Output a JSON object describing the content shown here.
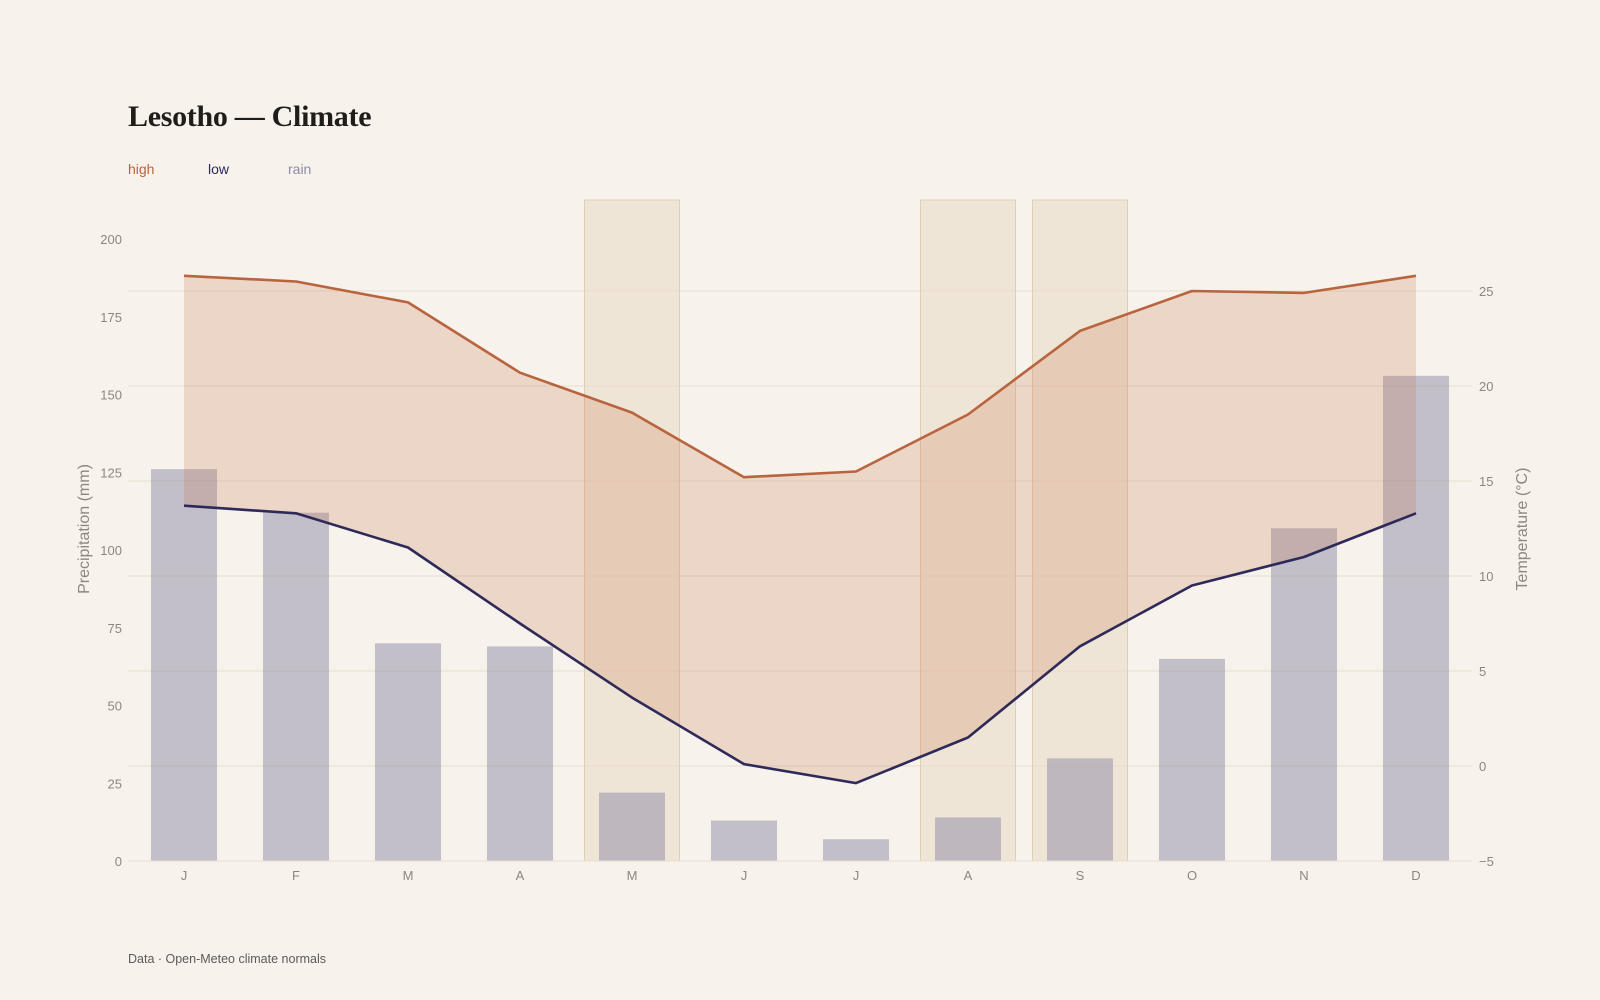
{
  "title": "Lesotho — Climate",
  "legend": [
    {
      "label": "high",
      "color": "#b8643f"
    },
    {
      "label": "low",
      "color": "#2d2a5a"
    },
    {
      "label": "rain",
      "color": "#8e8ba6"
    }
  ],
  "footer": "Data · Open-Meteo climate normals",
  "chart_data": {
    "type": "bar+line",
    "categories": [
      "J",
      "F",
      "M",
      "A",
      "M",
      "J",
      "J",
      "A",
      "S",
      "O",
      "N",
      "D"
    ],
    "highlighted_months": [
      4,
      7,
      8
    ],
    "series": [
      {
        "name": "rain",
        "axis": "left",
        "type": "bar",
        "color": "#8e8ba6",
        "values": [
          126,
          112,
          70,
          69,
          22,
          13,
          7,
          14,
          33,
          65,
          107,
          156
        ]
      },
      {
        "name": "high",
        "axis": "right",
        "type": "line",
        "color": "#b8643f",
        "values": [
          25.8,
          25.5,
          24.4,
          20.7,
          18.6,
          15.2,
          15.5,
          18.5,
          22.9,
          25.0,
          24.9,
          25.8
        ]
      },
      {
        "name": "low",
        "axis": "right",
        "type": "line",
        "color": "#2d2a5a",
        "values": [
          13.7,
          13.3,
          11.5,
          7.5,
          3.6,
          0.1,
          -0.9,
          1.5,
          6.3,
          9.5,
          11.0,
          13.3
        ]
      }
    ],
    "y_left": {
      "label": "Precipitation (mm)",
      "range": [
        0,
        200
      ],
      "ticks": [
        "0",
        "25",
        "50",
        "75",
        "100",
        "125",
        "150",
        "175",
        "200"
      ]
    },
    "y_right": {
      "label": "Temperature (°C)",
      "range": [
        -5,
        25
      ],
      "ticks": [
        "−5",
        "0",
        "5",
        "10",
        "15",
        "20",
        "25"
      ]
    },
    "grid": true
  }
}
